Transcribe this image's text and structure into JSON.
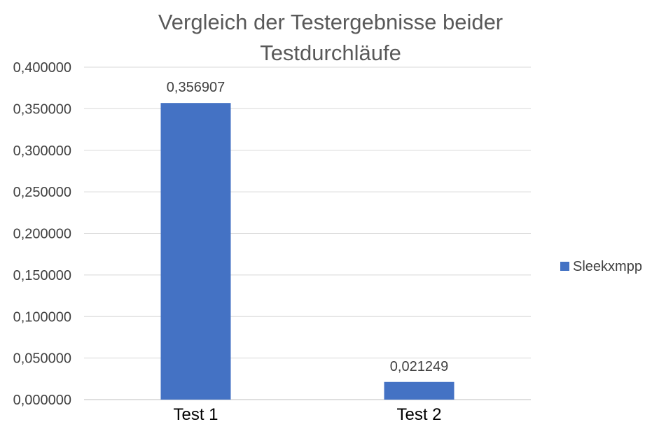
{
  "chart_data": {
    "type": "bar",
    "title_lines": [
      "Vergleich der Testergebnisse beider",
      "Testdurchläufe"
    ],
    "categories": [
      "Test 1",
      "Test 2"
    ],
    "series": [
      {
        "name": "Sleekxmpp",
        "values": [
          0.356907,
          0.021249
        ],
        "data_labels": [
          "0,356907",
          "0,021249"
        ]
      }
    ],
    "ylim": [
      0,
      0.4
    ],
    "yticks": [
      0,
      0.05,
      0.1,
      0.15,
      0.2,
      0.25,
      0.3,
      0.35,
      0.4
    ],
    "ytick_labels": [
      "0,000000",
      "0,050000",
      "0,100000",
      "0,150000",
      "0,200000",
      "0,250000",
      "0,300000",
      "0,350000",
      "0,400000"
    ],
    "grid": true,
    "legend_position": "right",
    "colors": {
      "bar": "#4472c4",
      "grid": "#d9d9d9",
      "title": "#595959"
    }
  }
}
